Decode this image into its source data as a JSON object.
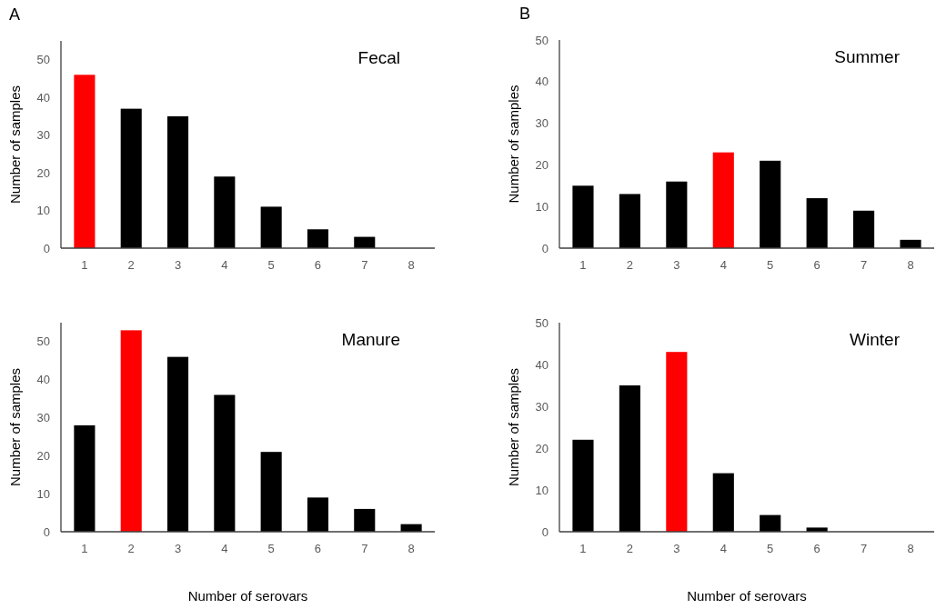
{
  "chart_data": [
    {
      "type": "bar",
      "title": "Fecal",
      "ylabel": "Number of samples",
      "annotations": [
        "A"
      ],
      "categories": [
        "1",
        "2",
        "3",
        "4",
        "5",
        "6",
        "7",
        "8"
      ],
      "values": [
        46,
        37,
        35,
        19,
        11,
        5,
        3,
        0
      ],
      "colors": [
        "#ff0000",
        "#000000",
        "#000000",
        "#000000",
        "#000000",
        "#000000",
        "#000000",
        "#000000"
      ],
      "ylim": [
        0,
        55
      ],
      "yticks": [
        0,
        10,
        20,
        30,
        40,
        50
      ],
      "grid": false
    },
    {
      "type": "bar",
      "title": "Summer",
      "ylabel": "Number of samples",
      "annotations": [
        "B"
      ],
      "categories": [
        "1",
        "2",
        "3",
        "4",
        "5",
        "6",
        "7",
        "8"
      ],
      "values": [
        15,
        13,
        16,
        23,
        21,
        12,
        9,
        2
      ],
      "colors": [
        "#000000",
        "#000000",
        "#000000",
        "#ff0000",
        "#000000",
        "#000000",
        "#000000",
        "#000000"
      ],
      "ylim": [
        0,
        50
      ],
      "yticks": [
        0,
        10,
        20,
        30,
        40,
        50
      ],
      "grid": false
    },
    {
      "type": "bar",
      "title": "Manure",
      "ylabel": "Number of samples",
      "xlabel": "Number of serovars",
      "categories": [
        "1",
        "2",
        "3",
        "4",
        "5",
        "6",
        "7",
        "8"
      ],
      "values": [
        28,
        53,
        46,
        36,
        21,
        9,
        6,
        2
      ],
      "colors": [
        "#000000",
        "#ff0000",
        "#000000",
        "#000000",
        "#000000",
        "#000000",
        "#000000",
        "#000000"
      ],
      "ylim": [
        0,
        55
      ],
      "yticks": [
        0,
        10,
        20,
        30,
        40,
        50
      ],
      "grid": false
    },
    {
      "type": "bar",
      "title": "Winter",
      "ylabel": "Number of samples",
      "xlabel": "Number of serovars",
      "categories": [
        "1",
        "2",
        "3",
        "4",
        "5",
        "6",
        "7",
        "8"
      ],
      "values": [
        22,
        35,
        43,
        14,
        4,
        1,
        0,
        0
      ],
      "colors": [
        "#000000",
        "#000000",
        "#ff0000",
        "#000000",
        "#000000",
        "#000000",
        "#000000",
        "#000000"
      ],
      "ylim": [
        0,
        50
      ],
      "yticks": [
        0,
        10,
        20,
        30,
        40,
        50
      ],
      "grid": false
    }
  ]
}
